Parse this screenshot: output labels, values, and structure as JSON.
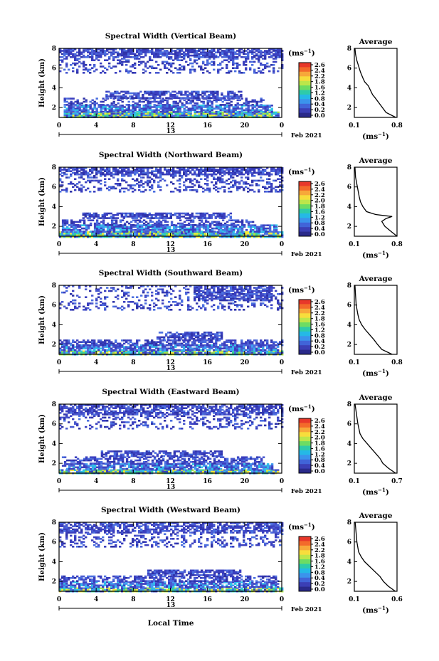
{
  "x_axis_label": "Local Time",
  "y_axis_label": "Height (km)",
  "day_label": "13",
  "month_label": "Feb 2021",
  "x_ticks": [
    "0",
    "4",
    "8",
    "12",
    "16",
    "20",
    "0"
  ],
  "y_ticks": [
    "2",
    "4",
    "6",
    "8"
  ],
  "colorbar_unit": "(ms",
  "unit_exponent": "−1",
  "unit_close": ")",
  "avg_title": "Average",
  "avg_unit": "(ms",
  "chart_data": [
    {
      "type": "heatmap",
      "title": "Spectral Width (Vertical Beam)",
      "x_range_hours": [
        0,
        24
      ],
      "ylim": [
        1,
        8
      ],
      "colorbar": {
        "ticks": [
          "2.6",
          "2.4",
          "2.2",
          "1.8",
          "1.6",
          "1.2",
          "0.8",
          "0.4",
          "0.2",
          "0.0"
        ]
      },
      "layers": [
        {
          "h": [
            1.0,
            1.6
          ],
          "x": [
            0.5,
            23.7
          ],
          "density": 0.97,
          "level": "high"
        },
        {
          "h": [
            1.6,
            2.3
          ],
          "x": [
            0.5,
            23.0
          ],
          "density": 0.78,
          "level": "mid"
        },
        {
          "h": [
            2.3,
            3.0
          ],
          "x": [
            0.5,
            22.0
          ],
          "density": 0.45,
          "level": "low"
        },
        {
          "h": [
            3.0,
            3.7
          ],
          "x": [
            5.0,
            19.5
          ],
          "density": 0.7,
          "level": "low"
        },
        {
          "h": [
            5.5,
            8.0
          ],
          "x": [
            0.0,
            24.0
          ],
          "density": 0.28,
          "level": "low"
        },
        {
          "h": [
            7.2,
            8.0
          ],
          "x": [
            0.0,
            24.0
          ],
          "density": 0.62,
          "level": "low"
        }
      ],
      "avg": {
        "xticks": [
          "0.1",
          "0.8"
        ],
        "xlim": [
          0.1,
          0.8
        ],
        "ylim": [
          1,
          8
        ],
        "yticks": [
          "2",
          "4",
          "6",
          "8"
        ],
        "profile": [
          [
            1.0,
            0.78
          ],
          [
            1.5,
            0.62
          ],
          [
            2.0,
            0.56
          ],
          [
            2.5,
            0.5
          ],
          [
            3.0,
            0.44
          ],
          [
            3.3,
            0.4
          ],
          [
            3.8,
            0.36
          ],
          [
            4.2,
            0.33
          ],
          [
            4.6,
            0.27
          ],
          [
            5.0,
            0.24
          ],
          [
            5.6,
            0.2
          ],
          [
            6.2,
            0.17
          ],
          [
            6.8,
            0.14
          ],
          [
            7.4,
            0.12
          ],
          [
            8.0,
            0.11
          ]
        ]
      }
    },
    {
      "type": "heatmap",
      "title": "Spectral Width (Northward Beam)",
      "x_range_hours": [
        0,
        24
      ],
      "ylim": [
        1,
        8
      ],
      "colorbar": {
        "ticks": [
          "2.6",
          "2.4",
          "2.2",
          "2.0",
          "1.8",
          "1.6",
          "1.2",
          "0.8",
          "0.4",
          "0.0"
        ]
      },
      "layers": [
        {
          "h": [
            1.0,
            1.5
          ],
          "x": [
            0.0,
            24.0
          ],
          "density": 0.95,
          "level": "high"
        },
        {
          "h": [
            1.5,
            2.2
          ],
          "x": [
            0.3,
            23.5
          ],
          "density": 0.8,
          "level": "mid"
        },
        {
          "h": [
            2.2,
            2.7
          ],
          "x": [
            0.3,
            21.0
          ],
          "density": 0.5,
          "level": "low"
        },
        {
          "h": [
            2.8,
            3.4
          ],
          "x": [
            2.5,
            18.5
          ],
          "density": 0.72,
          "level": "low"
        },
        {
          "h": [
            5.5,
            8.0
          ],
          "x": [
            0.0,
            24.0
          ],
          "density": 0.3,
          "level": "low"
        },
        {
          "h": [
            7.3,
            8.0
          ],
          "x": [
            0.0,
            24.0
          ],
          "density": 0.65,
          "level": "low"
        }
      ],
      "avg": {
        "xticks": [
          "0.1",
          "0.8"
        ],
        "xlim": [
          0.1,
          0.8
        ],
        "ylim": [
          1,
          8
        ],
        "yticks": [
          "2",
          "4",
          "6",
          "8"
        ],
        "profile": [
          [
            1.0,
            0.8
          ],
          [
            1.5,
            0.7
          ],
          [
            2.0,
            0.6
          ],
          [
            2.5,
            0.55
          ],
          [
            2.8,
            0.62
          ],
          [
            3.0,
            0.72
          ],
          [
            3.2,
            0.45
          ],
          [
            3.5,
            0.3
          ],
          [
            4.0,
            0.24
          ],
          [
            4.5,
            0.2
          ],
          [
            5.0,
            0.18
          ],
          [
            6.0,
            0.15
          ],
          [
            7.0,
            0.12
          ],
          [
            8.0,
            0.11
          ]
        ]
      }
    },
    {
      "type": "heatmap",
      "title": "Spectral Width (Southward Beam)",
      "x_range_hours": [
        0,
        24
      ],
      "ylim": [
        1,
        8
      ],
      "colorbar": {
        "ticks": [
          "2.6",
          "2.4",
          "2.2",
          "1.8",
          "1.6",
          "1.2",
          "0.8",
          "0.4",
          "0.2",
          "0.0"
        ]
      },
      "layers": [
        {
          "h": [
            1.0,
            1.4
          ],
          "x": [
            0.0,
            24.0
          ],
          "density": 0.93,
          "level": "high"
        },
        {
          "h": [
            1.4,
            2.0
          ],
          "x": [
            0.0,
            23.5
          ],
          "density": 0.8,
          "level": "mid"
        },
        {
          "h": [
            2.0,
            2.5
          ],
          "x": [
            0.0,
            24.0
          ],
          "density": 0.6,
          "level": "low"
        },
        {
          "h": [
            2.5,
            3.3
          ],
          "x": [
            10.5,
            17.5
          ],
          "density": 0.72,
          "level": "low"
        },
        {
          "h": [
            5.5,
            8.0
          ],
          "x": [
            0.0,
            24.0
          ],
          "density": 0.22,
          "level": "low"
        },
        {
          "h": [
            6.5,
            8.0
          ],
          "x": [
            14.5,
            23.0
          ],
          "density": 0.7,
          "level": "low"
        }
      ],
      "avg": {
        "xticks": [
          "0.1",
          "0.8"
        ],
        "xlim": [
          0.1,
          0.8
        ],
        "ylim": [
          1,
          8
        ],
        "yticks": [
          "2",
          "4",
          "6",
          "8"
        ],
        "profile": [
          [
            1.0,
            0.72
          ],
          [
            1.5,
            0.55
          ],
          [
            2.0,
            0.48
          ],
          [
            2.5,
            0.42
          ],
          [
            3.0,
            0.35
          ],
          [
            3.5,
            0.28
          ],
          [
            4.0,
            0.22
          ],
          [
            4.5,
            0.18
          ],
          [
            5.0,
            0.16
          ],
          [
            6.0,
            0.13
          ],
          [
            7.0,
            0.12
          ],
          [
            8.0,
            0.11
          ]
        ]
      }
    },
    {
      "type": "heatmap",
      "title": "Spectral Width (Eastward Beam)",
      "x_range_hours": [
        0,
        24
      ],
      "ylim": [
        1,
        8
      ],
      "colorbar": {
        "ticks": [
          "2.6",
          "2.4",
          "2.2",
          "2.0",
          "1.8",
          "1.6",
          "1.2",
          "0.8",
          "0.4",
          "0.0"
        ]
      },
      "layers": [
        {
          "h": [
            1.0,
            1.4
          ],
          "x": [
            0.0,
            23.5
          ],
          "density": 0.92,
          "level": "high"
        },
        {
          "h": [
            1.4,
            2.0
          ],
          "x": [
            0.3,
            23.0
          ],
          "density": 0.78,
          "level": "mid"
        },
        {
          "h": [
            2.0,
            2.7
          ],
          "x": [
            0.3,
            22.0
          ],
          "density": 0.55,
          "level": "low"
        },
        {
          "h": [
            2.7,
            3.3
          ],
          "x": [
            4.5,
            17.5
          ],
          "density": 0.68,
          "level": "low"
        },
        {
          "h": [
            5.5,
            8.0
          ],
          "x": [
            0.0,
            24.0
          ],
          "density": 0.25,
          "level": "low"
        },
        {
          "h": [
            7.0,
            8.0
          ],
          "x": [
            0.0,
            24.0
          ],
          "density": 0.55,
          "level": "low"
        }
      ],
      "avg": {
        "xticks": [
          "0.1",
          "0.7"
        ],
        "xlim": [
          0.1,
          0.7
        ],
        "ylim": [
          1,
          8
        ],
        "yticks": [
          "2",
          "4",
          "6",
          "8"
        ],
        "profile": [
          [
            1.0,
            0.68
          ],
          [
            1.5,
            0.58
          ],
          [
            2.0,
            0.5
          ],
          [
            2.5,
            0.46
          ],
          [
            3.0,
            0.4
          ],
          [
            3.5,
            0.34
          ],
          [
            4.0,
            0.28
          ],
          [
            4.5,
            0.22
          ],
          [
            5.0,
            0.18
          ],
          [
            6.0,
            0.15
          ],
          [
            7.0,
            0.13
          ],
          [
            8.0,
            0.11
          ]
        ]
      }
    },
    {
      "type": "heatmap",
      "title": "Spectral Width (Westward Beam)",
      "x_range_hours": [
        0,
        24
      ],
      "ylim": [
        1,
        8
      ],
      "colorbar": {
        "ticks": [
          "2.6",
          "2.4",
          "2.2",
          "1.8",
          "1.6",
          "1.2",
          "0.8",
          "0.4",
          "0.2",
          "0.0"
        ]
      },
      "layers": [
        {
          "h": [
            1.0,
            1.4
          ],
          "x": [
            0.0,
            24.0
          ],
          "density": 0.9,
          "level": "high"
        },
        {
          "h": [
            1.4,
            2.0
          ],
          "x": [
            0.0,
            23.5
          ],
          "density": 0.8,
          "level": "mid"
        },
        {
          "h": [
            2.0,
            2.6
          ],
          "x": [
            0.0,
            23.5
          ],
          "density": 0.6,
          "level": "low"
        },
        {
          "h": [
            2.6,
            3.2
          ],
          "x": [
            9.5,
            19.5
          ],
          "density": 0.7,
          "level": "low"
        },
        {
          "h": [
            5.5,
            8.0
          ],
          "x": [
            0.0,
            24.0
          ],
          "density": 0.25,
          "level": "low"
        },
        {
          "h": [
            7.0,
            8.0
          ],
          "x": [
            0.0,
            24.0
          ],
          "density": 0.55,
          "level": "low"
        }
      ],
      "avg": {
        "xticks": [
          "0.1",
          "0.6"
        ],
        "xlim": [
          0.1,
          0.6
        ],
        "ylim": [
          1,
          8
        ],
        "yticks": [
          "2",
          "4",
          "6",
          "8"
        ],
        "profile": [
          [
            1.0,
            0.58
          ],
          [
            1.5,
            0.5
          ],
          [
            2.0,
            0.44
          ],
          [
            2.5,
            0.4
          ],
          [
            3.0,
            0.34
          ],
          [
            3.5,
            0.28
          ],
          [
            4.0,
            0.22
          ],
          [
            4.5,
            0.18
          ],
          [
            5.0,
            0.15
          ],
          [
            6.0,
            0.13
          ],
          [
            7.0,
            0.12
          ],
          [
            8.0,
            0.11
          ]
        ]
      }
    }
  ]
}
